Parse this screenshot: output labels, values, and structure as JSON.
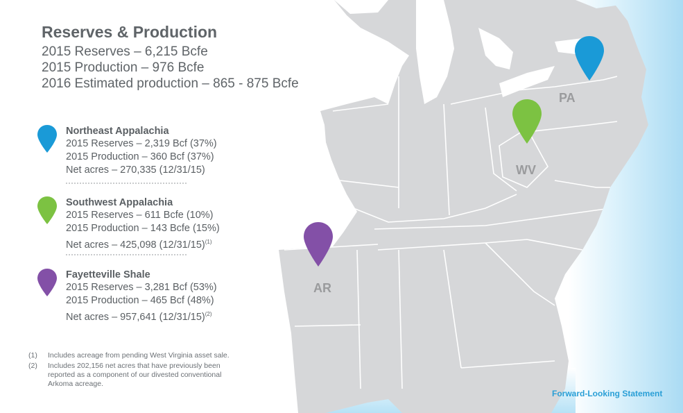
{
  "header": {
    "title": "Reserves & Production",
    "summary": [
      "2015 Reserves – 6,215 Bcfe",
      "2015 Production – 976 Bcfe",
      "2016 Estimated production – 865 - 875 Bcfe"
    ]
  },
  "regions": [
    {
      "name": "Northeast Appalachia",
      "color": "#1a9ad7",
      "reserves": "2015 Reserves – 2,319 Bcf (37%)",
      "production": "2015 Production – 360 Bcf (37%)",
      "acres": "Net acres – 270,335 (12/31/15)",
      "acres_note": ""
    },
    {
      "name": "Southwest Appalachia",
      "color": "#7cc242",
      "reserves": "2015 Reserves – 611 Bcfe (10%)",
      "production": "2015 Production – 143 Bcfe (15%)",
      "acres": "Net acres – 425,098 (12/31/15)",
      "acres_note": "(1)"
    },
    {
      "name": "Fayetteville Shale",
      "color": "#8350a7",
      "reserves": "2015 Reserves – 3,281 Bcf (53%)",
      "production": "2015 Production – 465 Bcf (48%)",
      "acres": "Net acres – 957,641 (12/31/15)",
      "acres_note": "(2)"
    }
  ],
  "footnotes": [
    {
      "num": "(1)",
      "text": "Includes acreage from pending West Virginia asset sale."
    },
    {
      "num": "(2)",
      "text": "Includes 202,156 net acres that have previously been reported as a component of our divested conventional Arkoma acreage."
    }
  ],
  "map": {
    "state_labels": {
      "pa": "PA",
      "wv": "WV",
      "ar": "AR"
    },
    "pins": [
      {
        "icon": "map-pin-icon",
        "color": "#1a9ad7",
        "state": "PA"
      },
      {
        "icon": "map-pin-icon",
        "color": "#7cc242",
        "state": "WV"
      },
      {
        "icon": "map-pin-icon",
        "color": "#8350a7",
        "state": "AR"
      }
    ],
    "land_color": "#d6d7d9",
    "border_color": "#ffffff",
    "water_color": "#bfe6f7"
  },
  "links": {
    "forward_looking": "Forward-Looking Statement"
  }
}
